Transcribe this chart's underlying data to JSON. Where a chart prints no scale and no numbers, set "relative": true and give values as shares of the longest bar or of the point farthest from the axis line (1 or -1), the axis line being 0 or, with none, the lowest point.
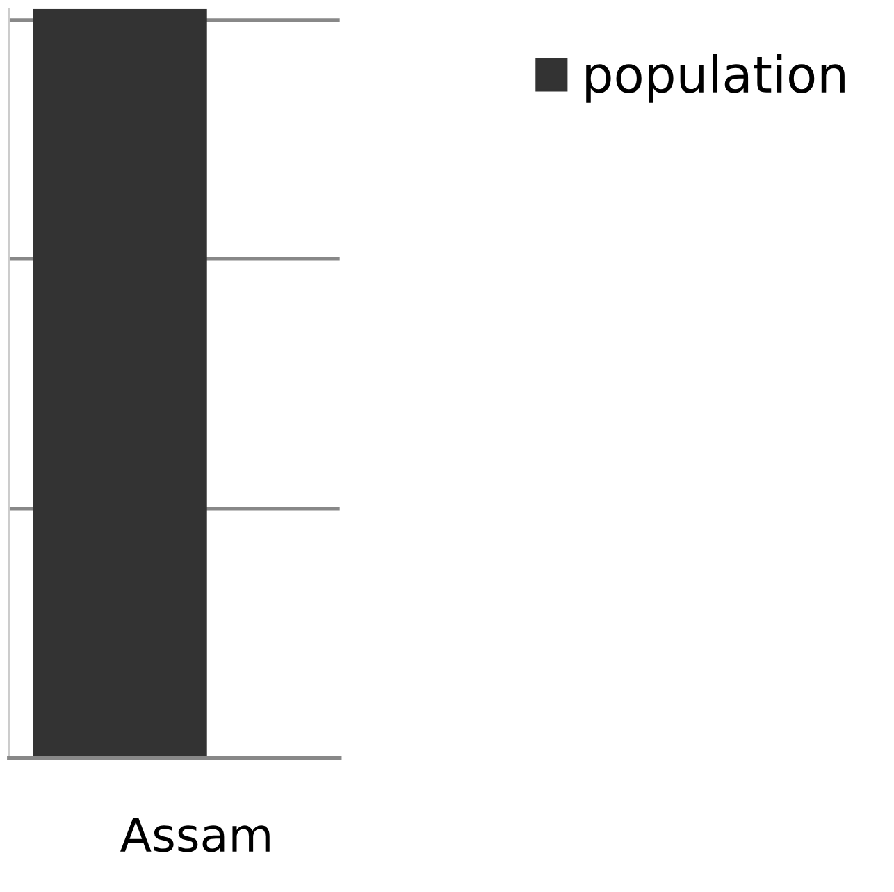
{
  "chart_data": {
    "type": "bar",
    "relative": true,
    "categories": [
      "Assam"
    ],
    "series": [
      {
        "name": "population",
        "color": "#333333",
        "values": [
          1
        ]
      }
    ],
    "grid": "y",
    "legend": "top right"
  }
}
